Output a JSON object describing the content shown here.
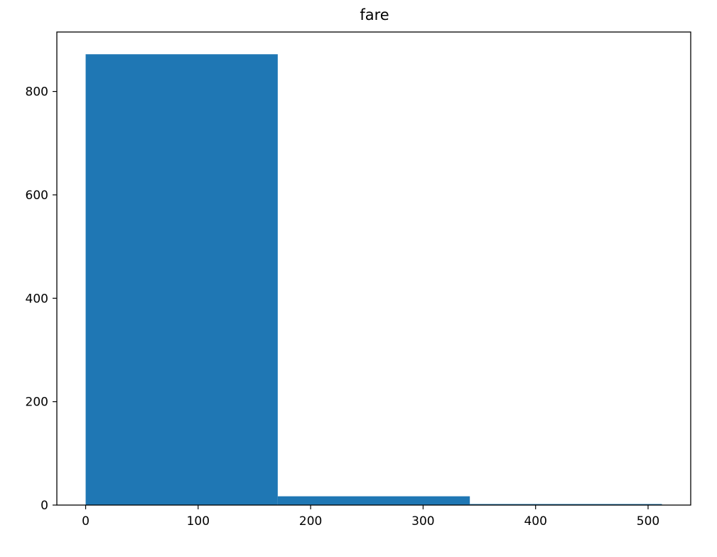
{
  "chart_data": {
    "type": "bar",
    "title": "fare",
    "xlabel": "",
    "ylabel": "",
    "bins": [
      {
        "x0": 0,
        "x1": 170.78,
        "count": 872
      },
      {
        "x0": 170.78,
        "x1": 341.55,
        "count": 17
      },
      {
        "x0": 341.55,
        "x1": 512.33,
        "count": 2
      }
    ],
    "xlim": [
      -25.6,
      537.9
    ],
    "ylim": [
      0,
      915
    ],
    "xticks": [
      0,
      100,
      200,
      300,
      400,
      500
    ],
    "xtick_labels": [
      "0",
      "100",
      "200",
      "300",
      "400",
      "500"
    ],
    "yticks": [
      0,
      200,
      400,
      600,
      800
    ],
    "ytick_labels": [
      "0",
      "200",
      "400",
      "600",
      "800"
    ],
    "bar_color": "#1f77b4",
    "grid": false,
    "legend": "none"
  }
}
